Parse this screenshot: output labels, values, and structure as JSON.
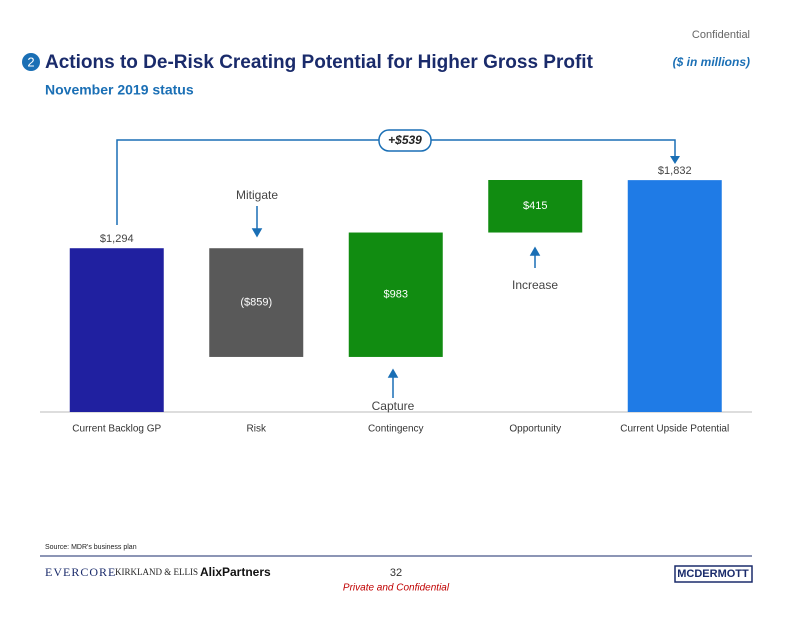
{
  "header": {
    "confidential": "Confidential",
    "section_number": "2",
    "title": "Actions to De-Risk Creating Potential for Higher Gross Profit",
    "units": "($ in millions)",
    "subtitle": "November 2019 status"
  },
  "chart_data": {
    "type": "waterfall",
    "categories": [
      "Current Backlog GP",
      "Risk",
      "Contingency",
      "Opportunity",
      "Current Upside Potential"
    ],
    "values": [
      1294,
      -859,
      983,
      415,
      1832
    ],
    "value_labels": [
      "$1,294",
      "($859)",
      "$983",
      "$415",
      "$1,832"
    ],
    "is_total": [
      true,
      false,
      false,
      false,
      true
    ],
    "colors": [
      "#2020a0",
      "#595959",
      "#118c11",
      "#118c11",
      "#1f7be6"
    ],
    "total_change_label": "+$539",
    "annotations": [
      "Mitigate",
      "Capture",
      "Increase"
    ]
  },
  "footer": {
    "source": "Source: MDR's business plan",
    "logos": [
      "EVERCORE",
      "KIRKLAND & ELLIS",
      "AlixPartners",
      "MCDERMOTT"
    ],
    "page_number": "32",
    "classification": "Private and Confidential"
  }
}
